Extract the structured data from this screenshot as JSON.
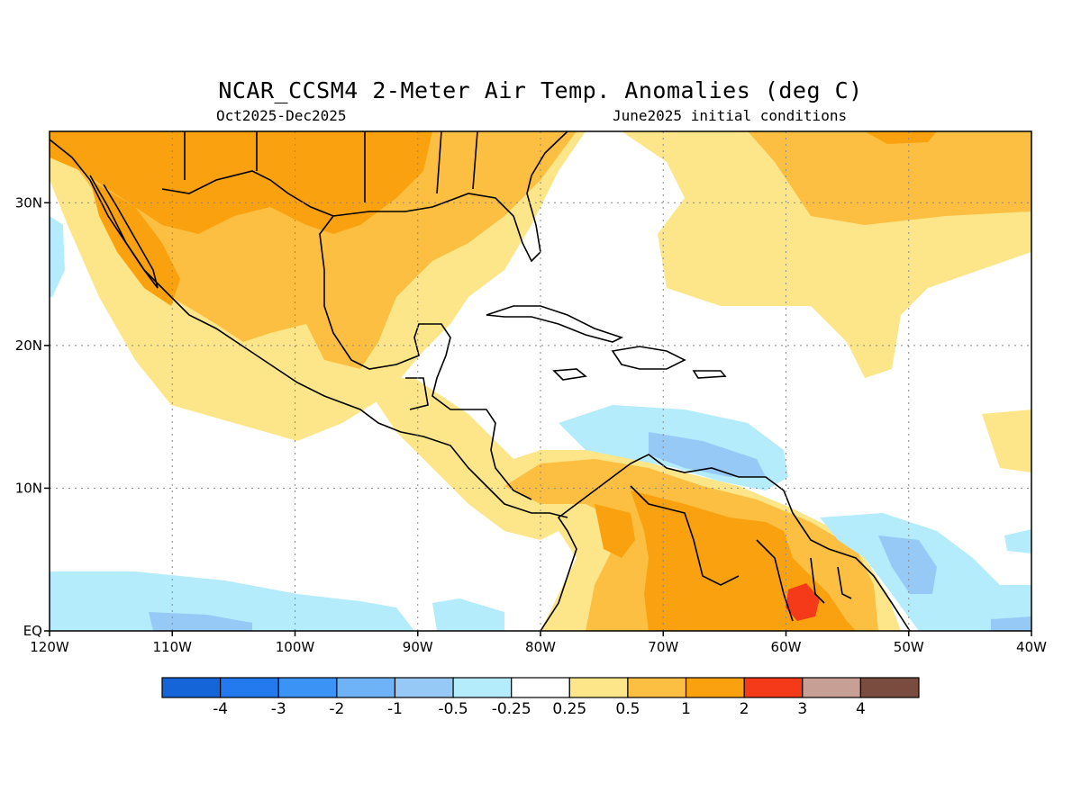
{
  "title": "NCAR_CCSM4 2-Meter Air Temp. Anomalies (deg C)",
  "subtitle_left": "Oct2025-Dec2025",
  "subtitle_right": "June2025 initial conditions",
  "map": {
    "extent": {
      "lon_min": -120,
      "lon_max": -40,
      "lat_min": 0,
      "lat_max": 35
    },
    "grid": true,
    "lat_ticks": [
      {
        "lat": 30,
        "label": "30N"
      },
      {
        "lat": 20,
        "label": "20N"
      },
      {
        "lat": 10,
        "label": "10N"
      },
      {
        "lat": 0,
        "label": "EQ"
      }
    ],
    "lon_ticks": [
      {
        "lon": -120,
        "label": "120W"
      },
      {
        "lon": -110,
        "label": "110W"
      },
      {
        "lon": -100,
        "label": "100W"
      },
      {
        "lon": -90,
        "label": "90W"
      },
      {
        "lon": -80,
        "label": "80W"
      },
      {
        "lon": -70,
        "label": "70W"
      },
      {
        "lon": -60,
        "label": "60W"
      },
      {
        "lon": -50,
        "label": "50W"
      },
      {
        "lon": -40,
        "label": "40W"
      }
    ]
  },
  "colorbar": {
    "colors": [
      "#1565d8",
      "#2379ee",
      "#3a93f5",
      "#6fb3f7",
      "#97c9f7",
      "#b4ecfb",
      "#ffffff",
      "#fde68a",
      "#fcbf42",
      "#f9a10e",
      "#f53a1a",
      "#c79f94",
      "#7a4b3f"
    ],
    "labels": [
      "-4",
      "-3",
      "-2",
      "-1",
      "-0.5",
      "-0.25",
      "0.25",
      "0.5",
      "1",
      "2",
      "3",
      "4"
    ]
  }
}
